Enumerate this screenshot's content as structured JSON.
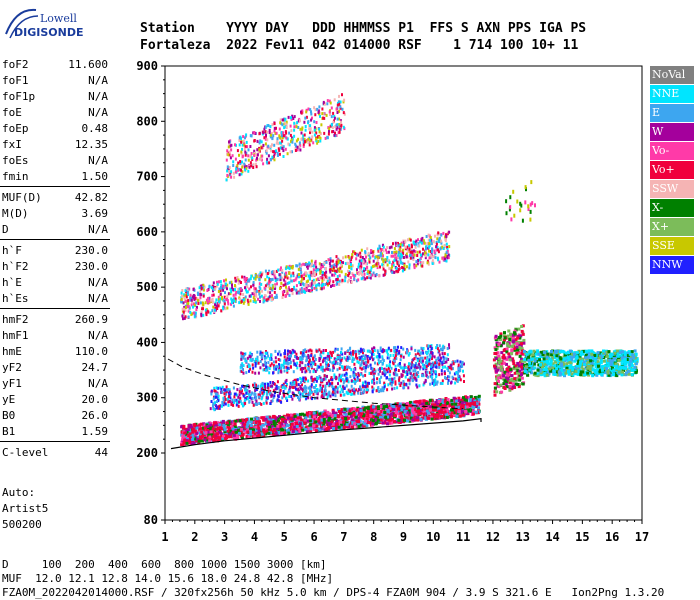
{
  "logo": {
    "line1": "Lowell",
    "line2": "DIGISONDE"
  },
  "header": {
    "labels": "Station    YYYY DAY   DDD HHMMSS P1  FFS S AXN PPS IGA PS",
    "values": "Fortaleza  2022 Fev11 042 014000 RSF    1 714 100 10+ 11"
  },
  "params": {
    "group1": [
      {
        "label": "foF2",
        "value": "11.600"
      },
      {
        "label": "foF1",
        "value": "N/A"
      },
      {
        "label": "foF1p",
        "value": "N/A"
      },
      {
        "label": "foE",
        "value": "N/A"
      },
      {
        "label": "foEp",
        "value": "0.48"
      },
      {
        "label": "fxI",
        "value": "12.35"
      },
      {
        "label": "foEs",
        "value": "N/A"
      },
      {
        "label": "fmin",
        "value": "1.50"
      }
    ],
    "group2": [
      {
        "label": "MUF(D)",
        "value": "42.82"
      },
      {
        "label": "M(D)",
        "value": "3.69"
      },
      {
        "label": "D",
        "value": "N/A"
      }
    ],
    "group3": [
      {
        "label": "h`F",
        "value": "230.0"
      },
      {
        "label": "h`F2",
        "value": "230.0"
      },
      {
        "label": "h`E",
        "value": "N/A"
      },
      {
        "label": "h`Es",
        "value": "N/A"
      }
    ],
    "group4": [
      {
        "label": "hmF2",
        "value": "260.9"
      },
      {
        "label": "hmF1",
        "value": "N/A"
      },
      {
        "label": "hmE",
        "value": "110.0"
      },
      {
        "label": "yF2",
        "value": "24.7"
      },
      {
        "label": "yF1",
        "value": "N/A"
      },
      {
        "label": "yE",
        "value": "20.0"
      },
      {
        "label": "B0",
        "value": "26.0"
      },
      {
        "label": "B1",
        "value": "1.59"
      }
    ],
    "group5": [
      {
        "label": "C-level",
        "value": "44"
      }
    ]
  },
  "auto": {
    "line1": "Auto:",
    "line2": "Artist5",
    "line3": "500200"
  },
  "legend": [
    {
      "label": "NoVal",
      "color": "#808080"
    },
    {
      "label": "NNE",
      "color": "#00e5ff"
    },
    {
      "label": "E",
      "color": "#3da6f0"
    },
    {
      "label": "W",
      "color": "#a4009c"
    },
    {
      "label": "Vo-",
      "color": "#ff3aa8"
    },
    {
      "label": "Vo+",
      "color": "#f0003c"
    },
    {
      "label": "SSW",
      "color": "#f5b4b4"
    },
    {
      "label": "X-",
      "color": "#008000"
    },
    {
      "label": "X+",
      "color": "#7cbc5a"
    },
    {
      "label": "SSE",
      "color": "#c8c800"
    },
    {
      "label": "NNW",
      "color": "#2020ff"
    }
  ],
  "chart_data": {
    "type": "scatter",
    "title": "",
    "xlabel": "",
    "ylabel": "",
    "xlim": [
      1,
      17
    ],
    "ylim": [
      80,
      900
    ],
    "x_ticks": [
      1,
      2,
      3,
      4,
      5,
      6,
      7,
      8,
      9,
      10,
      11,
      12,
      13,
      14,
      15,
      16,
      17
    ],
    "y_ticks": [
      80,
      200,
      300,
      400,
      500,
      600,
      700,
      800,
      900
    ],
    "grid": false,
    "legend_placement": "right"
  },
  "footer": {
    "line1": "D     100  200  400  600  800 1000 1500 3000 [km]",
    "line2": "MUF  12.0 12.1 12.8 14.0 15.6 18.0 24.8 42.8 [MHz]",
    "line3": "FZA0M_2022042014000.RSF / 320fx256h 50 kHz 5.0 km / DPS-4 FZA0M 904 / 3.9 S 321.6 E   Ion2Png 1.3.20"
  }
}
